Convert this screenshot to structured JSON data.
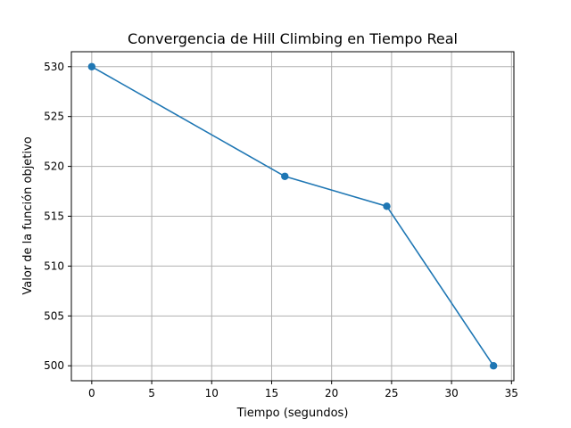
{
  "chart_data": {
    "type": "line",
    "title": "Convergencia de Hill Climbing en Tiempo Real",
    "xlabel": "Tiempo (segundos)",
    "ylabel": "Valor de la función objetivo",
    "xlim": [
      -1.7,
      35.2
    ],
    "ylim": [
      498.5,
      531.5
    ],
    "xticks": [
      0,
      5,
      10,
      15,
      20,
      25,
      30,
      35
    ],
    "yticks": [
      500,
      505,
      510,
      515,
      520,
      525,
      530
    ],
    "grid": true,
    "legend": "none",
    "series": [
      {
        "color": "#1f77b4",
        "marker": "circle",
        "x": [
          0,
          16.1,
          24.6,
          33.5
        ],
        "y": [
          530,
          519,
          516,
          500
        ]
      }
    ]
  }
}
